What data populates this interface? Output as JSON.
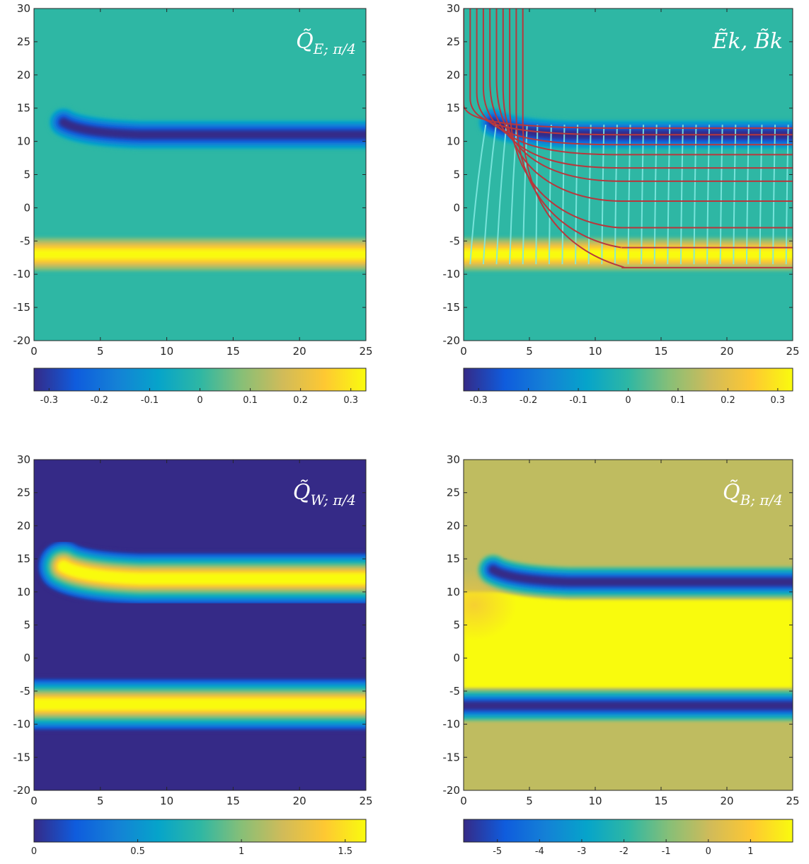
{
  "colormap": [
    "#352a87",
    "#0f5cdd",
    "#1481d6",
    "#06a4ca",
    "#2eb7a4",
    "#87bf77",
    "#d1bb59",
    "#fec832",
    "#f9fb0e"
  ],
  "chart_data": [
    {
      "id": "QE",
      "type": "heatmap",
      "title": "Q̃",
      "title_sub": "E; π/4",
      "xlim": [
        0,
        25
      ],
      "ylim": [
        -20,
        30
      ],
      "x_ticks": [
        "0",
        "5",
        "10",
        "15",
        "20",
        "25"
      ],
      "y_ticks": [
        "30",
        "25",
        "20",
        "15",
        "10",
        "5",
        "0",
        "-5",
        "-10",
        "-15",
        "-20"
      ],
      "background_level": 0.5,
      "bands": [
        {
          "kind": "curved",
          "y": 11,
          "level": 0.0,
          "width": 1.3
        },
        {
          "kind": "straight",
          "y": -7,
          "level": 1.0,
          "width": 1.5
        }
      ],
      "colorbar": {
        "range": [
          -0.33,
          0.33
        ],
        "ticks": [
          -0.3,
          -0.2,
          -0.1,
          0,
          0.1,
          0.2,
          0.3
        ],
        "tick_labels": [
          "-0.3",
          "-0.2",
          "-0.1",
          "0",
          "0.1",
          "0.2",
          "0.3"
        ]
      }
    },
    {
      "id": "EB",
      "type": "heatmap",
      "title": "Ẽk, B̃k",
      "title_sub": "",
      "xlim": [
        0,
        25
      ],
      "ylim": [
        -20,
        30
      ],
      "x_ticks": [
        "0",
        "5",
        "10",
        "15",
        "20",
        "25"
      ],
      "y_ticks": [
        "30",
        "25",
        "20",
        "15",
        "10",
        "5",
        "0",
        "-5",
        "-10",
        "-15",
        "-20"
      ],
      "background_level": 0.5,
      "bands": [
        {
          "kind": "curved",
          "y": 11,
          "level": 0.0,
          "width": 1.3
        },
        {
          "kind": "straight",
          "y": -7,
          "level": 1.0,
          "width": 1.5
        }
      ],
      "red_lines": {
        "top_x": [
          0,
          0.5,
          1,
          1.5,
          2,
          2.5,
          3,
          3.5,
          4,
          4.5
        ],
        "right_y": [
          12,
          11,
          9.5,
          8,
          6,
          4,
          1,
          -3,
          -6,
          -9
        ]
      },
      "cyan_lines": {
        "x": [
          0.5,
          1.5,
          2.5,
          3.5,
          4.5,
          5.5,
          6.5,
          7.5,
          8.5,
          9.5,
          10.5,
          11.5,
          12.5,
          13.5,
          14.5,
          15.5,
          16.5,
          17.5,
          18.5,
          19.5,
          20.5,
          21.5,
          22.5,
          23.5,
          24.5
        ],
        "y_top": 12.5,
        "y_bottom": -8.5
      },
      "colorbar": {
        "range": [
          -0.33,
          0.33
        ],
        "ticks": [
          -0.3,
          -0.2,
          -0.1,
          0,
          0.1,
          0.2,
          0.3
        ],
        "tick_labels": [
          "-0.3",
          "-0.2",
          "-0.1",
          "0",
          "0.1",
          "0.2",
          "0.3"
        ]
      }
    },
    {
      "id": "QW",
      "type": "heatmap",
      "title": "Q̃",
      "title_sub": "W; π/4",
      "xlim": [
        0,
        25
      ],
      "ylim": [
        -20,
        30
      ],
      "x_ticks": [
        "0",
        "5",
        "10",
        "15",
        "20",
        "25"
      ],
      "y_ticks": [
        "30",
        "25",
        "20",
        "15",
        "10",
        "5",
        "0",
        "-5",
        "-10",
        "-15",
        "-20"
      ],
      "background_level": 0.0,
      "bands": [
        {
          "kind": "curved",
          "y": 12,
          "level": 1.0,
          "width": 2.2
        },
        {
          "kind": "straight",
          "y": -7,
          "level": 1.0,
          "width": 2.2
        }
      ],
      "colorbar": {
        "range": [
          0,
          1.6
        ],
        "ticks": [
          0,
          0.5,
          1,
          1.5
        ],
        "tick_labels": [
          "0",
          "0.5",
          "1",
          "1.5"
        ]
      }
    },
    {
      "id": "QB",
      "type": "heatmap",
      "title": "Q̃",
      "title_sub": "B; π/4",
      "xlim": [
        0,
        25
      ],
      "ylim": [
        -20,
        30
      ],
      "x_ticks": [
        "0",
        "5",
        "10",
        "15",
        "20",
        "25"
      ],
      "y_ticks": [
        "30",
        "25",
        "20",
        "15",
        "10",
        "5",
        "0",
        "-5",
        "-10",
        "-15",
        "-20"
      ],
      "background_level": 0.72,
      "inner_level": 1.0,
      "inner_range": [
        -5,
        10
      ],
      "bands": [
        {
          "kind": "curved",
          "y": 11.5,
          "level": 0.0,
          "width": 1.4
        },
        {
          "kind": "straight",
          "y": -7.2,
          "level": 0.0,
          "width": 1.4
        }
      ],
      "colorbar": {
        "range": [
          -5.8,
          2
        ],
        "ticks": [
          -5,
          -4,
          -3,
          -2,
          -1,
          0,
          1
        ],
        "tick_labels": [
          "-5",
          "-4",
          "-3",
          "-2",
          "-1",
          "0",
          "1"
        ]
      }
    }
  ]
}
